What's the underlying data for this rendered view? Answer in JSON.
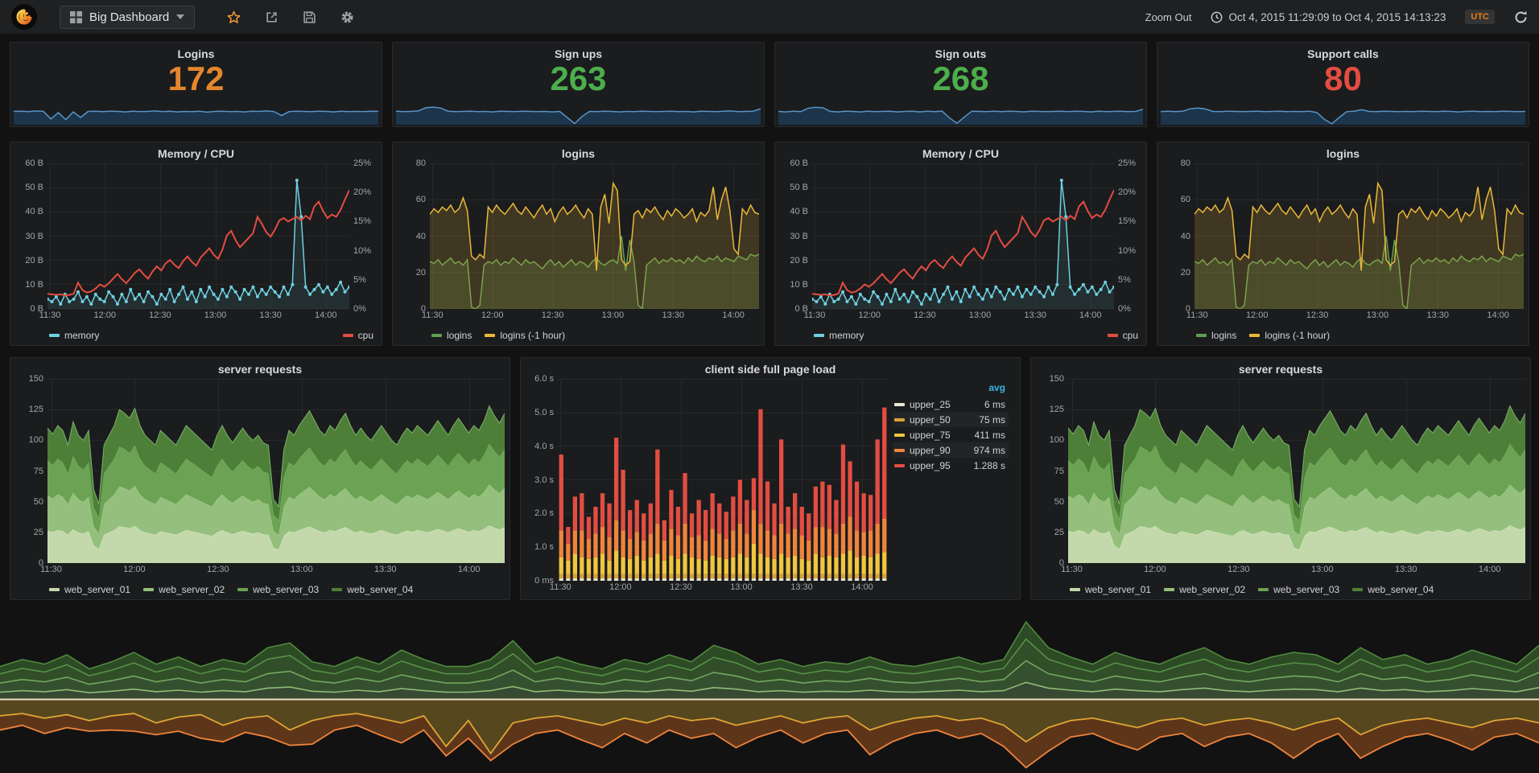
{
  "navbar": {
    "logo": "grafana-logo",
    "title": "Big Dashboard",
    "zoom_out": "Zoom Out",
    "time_range": "Oct 4, 2015 11:29:09 to Oct 4, 2015 14:13:23",
    "timezone": "UTC"
  },
  "time_axis": {
    "labels": [
      "11:30",
      "12:00",
      "12:30",
      "13:00",
      "13:30",
      "14:00"
    ],
    "fractions": [
      0.008,
      0.19,
      0.373,
      0.556,
      0.739,
      0.922
    ]
  },
  "stats": [
    {
      "title": "Logins",
      "value": "172",
      "color": "#e5862d",
      "spark": [
        55,
        56,
        54,
        57,
        55,
        24,
        50,
        21,
        53,
        30,
        55,
        56,
        54,
        56,
        55,
        53,
        56,
        54,
        55,
        57,
        54,
        56,
        53,
        55,
        54,
        56,
        52,
        55,
        56,
        54,
        55,
        53,
        56,
        55,
        57,
        54,
        38,
        54,
        56,
        55,
        54,
        56,
        55,
        53,
        56,
        54,
        55,
        54,
        56,
        55
      ]
    },
    {
      "title": "Sign ups",
      "value": "263",
      "color": "#4cae4c",
      "spark": [
        56,
        54,
        55,
        57,
        70,
        73,
        69,
        56,
        54,
        55,
        56,
        54,
        55,
        53,
        56,
        55,
        54,
        56,
        55,
        54,
        55,
        53,
        55,
        30,
        5,
        34,
        55,
        54,
        56,
        55,
        53,
        55,
        54,
        56,
        55,
        54,
        55,
        56,
        54,
        55,
        53,
        56,
        55,
        54,
        56,
        57,
        54,
        55,
        56,
        66
      ]
    },
    {
      "title": "Sign outs",
      "value": "268",
      "color": "#4cae4c",
      "spark": [
        55,
        53,
        56,
        54,
        68,
        72,
        70,
        55,
        53,
        56,
        55,
        53,
        56,
        54,
        55,
        56,
        53,
        55,
        56,
        53,
        56,
        54,
        56,
        28,
        6,
        32,
        56,
        55,
        54,
        56,
        54,
        56,
        55,
        53,
        56,
        55,
        54,
        55,
        56,
        54,
        56,
        55,
        53,
        56,
        54,
        55,
        56,
        54,
        55,
        64
      ]
    },
    {
      "title": "Support calls",
      "value": "80",
      "color": "#e24d42",
      "spark": [
        54,
        56,
        54,
        56,
        66,
        69,
        65,
        55,
        54,
        56,
        55,
        54,
        55,
        56,
        54,
        55,
        56,
        54,
        55,
        54,
        56,
        50,
        22,
        4,
        30,
        54,
        56,
        62,
        55,
        54,
        56,
        55,
        54,
        55,
        54,
        56,
        55,
        54,
        56,
        55,
        53,
        55,
        56,
        54,
        55,
        54,
        56,
        55,
        54,
        55
      ]
    }
  ],
  "charts": {
    "memory_cpu": {
      "type": "lines",
      "title": "Memory / CPU",
      "y_left": [
        "60 B",
        "50 B",
        "40 B",
        "30 B",
        "20 B",
        "10 B",
        "0 B"
      ],
      "y_right": [
        "25%",
        "20%",
        "15%",
        "10%",
        "5%",
        "0%"
      ],
      "legend": [
        {
          "label": "memory",
          "color": "#6ed0e0"
        },
        {
          "label": "cpu",
          "color": "#e24d42"
        }
      ],
      "series": [
        {
          "name": "memory",
          "color": "#6ed0e0",
          "max": 60,
          "width": 1.5,
          "dots": true,
          "fill": "rgba(110,208,224,0.10)",
          "data": [
            4,
            3,
            5,
            2,
            6,
            3,
            4,
            7,
            3,
            5,
            2,
            6,
            4,
            3,
            7,
            5,
            2,
            6,
            3,
            8,
            4,
            6,
            3,
            7,
            5,
            2,
            6,
            4,
            8,
            3,
            6,
            9,
            4,
            7,
            3,
            8,
            5,
            9,
            6,
            4,
            8,
            5,
            9,
            7,
            4,
            8,
            6,
            9,
            5,
            8,
            6,
            9,
            7,
            5,
            9,
            6,
            10,
            53,
            38,
            9,
            6,
            8,
            10,
            7,
            9,
            6,
            8,
            11,
            7,
            9
          ]
        },
        {
          "name": "cpu",
          "color": "#e24d42",
          "max": 25,
          "width": 2,
          "data": [
            2.6,
            2.5,
            2.4,
            2.5,
            2.3,
            2.4,
            2.6,
            4.5,
            3.2,
            2.8,
            3.0,
            3.5,
            4.2,
            3.8,
            4.4,
            5.2,
            6.0,
            5.1,
            4.4,
            5.3,
            6.2,
            6.8,
            5.9,
            5.2,
            6.4,
            7.3,
            6.6,
            7.8,
            8.4,
            7.6,
            7.0,
            8.2,
            9.0,
            8.1,
            7.4,
            8.8,
            9.6,
            10.4,
            9.3,
            8.6,
            10.2,
            12.6,
            13.4,
            11.8,
            10.6,
            11.4,
            12.2,
            13.0,
            15.8,
            14.6,
            13.2,
            12.4,
            13.6,
            15.2,
            15.6,
            15.0,
            15.4,
            15.8,
            15.2,
            16.0,
            15.4,
            17.6,
            18.4,
            16.8,
            15.6,
            16.2,
            15.8,
            17.0,
            18.8,
            20.4
          ]
        }
      ]
    },
    "logins": {
      "type": "lines",
      "title": "logins",
      "y_left": [
        "80",
        "60",
        "40",
        "20",
        "0"
      ],
      "legend": [
        {
          "label": "logins",
          "color": "#629e51"
        },
        {
          "label": "logins (-1 hour)",
          "color": "#eab839"
        }
      ],
      "series": [
        {
          "name": "logins",
          "color": "#629e51",
          "max": 80,
          "width": 1.5,
          "fill": "rgba(98,158,81,0.20)",
          "data": [
            26,
            25,
            27,
            24,
            26,
            28,
            25,
            26,
            24,
            27,
            1,
            0,
            2,
            24,
            26,
            25,
            27,
            24,
            26,
            25,
            28,
            26,
            24,
            27,
            25,
            26,
            24,
            22,
            25,
            27,
            24,
            26,
            23,
            25,
            27,
            24,
            26,
            25,
            23,
            26,
            28,
            25,
            24,
            26,
            27,
            25,
            40,
            21,
            38,
            26,
            2,
            0,
            24,
            26,
            28,
            25,
            27,
            26,
            28,
            26,
            27,
            25,
            28,
            26,
            29,
            27,
            26,
            28,
            27,
            29,
            26,
            28,
            27,
            26,
            29,
            28,
            27,
            30,
            29,
            30
          ]
        },
        {
          "name": "logins (-1 hour)",
          "color": "#eab839",
          "max": 80,
          "width": 1.5,
          "fill": "rgba(234,184,57,0.18)",
          "data": [
            52,
            55,
            53,
            56,
            54,
            57,
            53,
            55,
            61,
            54,
            29,
            27,
            30,
            28,
            56,
            53,
            57,
            54,
            52,
            55,
            58,
            54,
            52,
            56,
            53,
            50,
            54,
            57,
            52,
            55,
            48,
            53,
            56,
            52,
            54,
            57,
            53,
            50,
            55,
            52,
            21,
            56,
            63,
            47,
            69,
            65,
            27,
            24,
            26,
            52,
            54,
            50,
            55,
            53,
            56,
            52,
            49,
            54,
            51,
            55,
            53,
            50,
            52,
            55,
            48,
            53,
            51,
            54,
            67,
            49,
            60,
            67,
            54,
            33,
            30,
            55,
            52,
            57,
            53,
            52
          ]
        }
      ]
    },
    "server_requests": {
      "type": "stack_area",
      "title": "server requests",
      "y_left": [
        "150",
        "125",
        "100",
        "75",
        "50",
        "25",
        "0"
      ],
      "max": 150,
      "fracs": [
        0.24,
        0.26,
        0.26,
        0.24
      ],
      "bands": [
        {
          "color": "#c3d9ab",
          "stroke": "#d9e8c6"
        },
        {
          "color": "#94bf7c",
          "stroke": "#a9d190"
        },
        {
          "color": "#6ba253",
          "stroke": "#7eb86a"
        },
        {
          "color": "#4d7f38",
          "stroke": "#7eb26d"
        }
      ],
      "legend": [
        {
          "label": "web_server_01",
          "color": "#c3d9ab"
        },
        {
          "label": "web_server_02",
          "color": "#94bf7c"
        },
        {
          "label": "web_server_03",
          "color": "#6ba253"
        },
        {
          "label": "web_server_04",
          "color": "#4d7f38"
        }
      ],
      "total": [
        110,
        105,
        112,
        108,
        96,
        115,
        104,
        100,
        108,
        60,
        48,
        96,
        104,
        112,
        125,
        122,
        118,
        126,
        112,
        104,
        100,
        96,
        108,
        104,
        100,
        96,
        104,
        112,
        108,
        104,
        100,
        96,
        92,
        104,
        112,
        104,
        98,
        104,
        110,
        104,
        100,
        104,
        98,
        96,
        52,
        46,
        92,
        108,
        104,
        112,
        118,
        124,
        116,
        108,
        104,
        112,
        108,
        116,
        122,
        112,
        104,
        110,
        104,
        100,
        106,
        112,
        106,
        100,
        96,
        104,
        110,
        106,
        112,
        108,
        104,
        110,
        116,
        110,
        104,
        112,
        118,
        112,
        106,
        112,
        108,
        116,
        128,
        120,
        114,
        122
      ]
    },
    "page_load": {
      "type": "bars",
      "title": "client side full page load",
      "y_left": [
        "6.0 s",
        "5.0 s",
        "4.0 s",
        "3.0 s",
        "2.0 s",
        "1.0 s",
        "0 ms"
      ],
      "max": 6,
      "segments": [
        {
          "color": "#EAE6D3",
          "const": 0.07
        },
        {
          "color": "#D9A23A",
          "const": 0.13
        },
        {
          "color": "#EFC63E",
          "data": [
            0.5,
            0.4,
            0.6,
            0.5,
            0.45,
            0.5,
            0.6,
            0.4,
            0.7,
            0.5,
            0.45,
            0.55,
            0.4,
            0.5,
            0.6,
            0.4,
            0.55,
            0.45,
            0.6,
            0.5,
            0.45,
            0.4,
            0.55,
            0.5,
            0.45,
            0.5,
            0.6,
            0.5,
            0.9,
            0.6,
            0.5,
            0.45,
            0.6,
            0.5,
            0.55,
            0.45,
            0.4,
            0.6,
            0.5,
            0.55,
            0.5,
            0.6,
            0.7,
            0.5,
            0.55,
            0.5,
            0.6,
            0.65
          ]
        },
        {
          "color": "#EF843C",
          "data": [
            0.8,
            0.5,
            0.7,
            0.8,
            0.6,
            0.7,
            0.8,
            0.7,
            0.9,
            0.8,
            0.6,
            0.7,
            0.6,
            0.7,
            0.9,
            0.6,
            0.8,
            0.7,
            0.9,
            0.6,
            0.7,
            0.6,
            0.8,
            0.7,
            0.6,
            0.8,
            0.9,
            0.7,
            1.0,
            0.9,
            0.8,
            0.7,
            0.9,
            0.7,
            0.8,
            0.7,
            0.6,
            0.8,
            0.9,
            0.8,
            0.7,
            0.9,
            1.0,
            0.8,
            0.7,
            0.8,
            0.9,
            1.0
          ]
        },
        {
          "color": "#E24D42",
          "data": [
            2.25,
            0.5,
            1.0,
            1.1,
            0.65,
            0.8,
            1.0,
            1.0,
            2.45,
            1.8,
            0.85,
            0.95,
            0.8,
            0.9,
            2.2,
            0.6,
            1.15,
            0.85,
            1.5,
            0.7,
            1.05,
            0.9,
            1.05,
            0.9,
            0.8,
            1.0,
            1.3,
            1.0,
            0.95,
            3.4,
            1.45,
            0.95,
            2.5,
            0.8,
            1.05,
            0.85,
            0.8,
            1.2,
            1.35,
            1.3,
            1.0,
            2.35,
            1.65,
            1.45,
            1.15,
            1.05,
            2.5,
            3.3
          ]
        }
      ],
      "legend": {
        "header": "avg",
        "rows": [
          {
            "label": "upper_25",
            "value": "6 ms",
            "color": "#EAE6D3"
          },
          {
            "label": "upper_50",
            "value": "75 ms",
            "color": "#D9A23A"
          },
          {
            "label": "upper_75",
            "value": "411 ms",
            "color": "#EFC63E"
          },
          {
            "label": "upper_90",
            "value": "974 ms",
            "color": "#EF843C"
          },
          {
            "label": "upper_95",
            "value": "1.288 s",
            "color": "#E24D42"
          }
        ]
      }
    },
    "stream": {
      "type": "stream",
      "baseline": 0.545,
      "baseline_color": "#e7e0c4",
      "up_fracs": [
        0.22,
        0.28,
        0.28,
        0.22
      ],
      "up_bands": [
        {
          "stroke": "#9cc581",
          "fill": "rgba(126,178,109,0.35)"
        },
        {
          "stroke": "#7eb26d",
          "fill": "rgba(98,158,81,0.45)"
        },
        {
          "stroke": "#629e51",
          "fill": "rgba(80,138,62,0.50)"
        },
        {
          "stroke": "#508a3e",
          "fill": "rgba(62,111,47,0.60)"
        }
      ],
      "up_total": [
        28,
        34,
        30,
        38,
        26,
        32,
        40,
        30,
        36,
        28,
        34,
        30,
        44,
        48,
        32,
        28,
        36,
        30,
        42,
        34,
        28,
        28,
        34,
        50,
        30,
        36,
        30,
        26,
        34,
        30,
        38,
        32,
        46,
        40,
        30,
        34,
        28,
        32,
        30,
        36,
        30,
        28,
        32,
        36,
        30,
        34,
        66,
        44,
        36,
        30,
        40,
        34,
        30,
        38,
        44,
        34,
        30,
        36,
        40,
        38,
        30,
        44,
        34,
        38,
        30,
        34,
        42,
        36,
        30,
        46
      ],
      "down": [
        {
          "stroke": "#eab839",
          "fill": "rgba(234,184,57,0.32)",
          "data": [
            14,
            12,
            16,
            13,
            18,
            14,
            12,
            20,
            15,
            13,
            22,
            16,
            14,
            26,
            18,
            14,
            12,
            16,
            20,
            14,
            40,
            18,
            46,
            20,
            16,
            14,
            18,
            22,
            16,
            20,
            14,
            18,
            16,
            22,
            18,
            14,
            20,
            16,
            14,
            26,
            20,
            16,
            14,
            18,
            16,
            22,
            36,
            24,
            18,
            16,
            20,
            24,
            18,
            16,
            22,
            18,
            16,
            20,
            26,
            20,
            16,
            30,
            22,
            18,
            16,
            20,
            24,
            18,
            16,
            20
          ]
        },
        {
          "stroke": "#ef843c",
          "fill": "rgba(186,100,36,0.45)",
          "data": [
            12,
            10,
            13,
            11,
            9,
            12,
            15,
            10,
            12,
            20,
            14,
            12,
            18,
            13,
            20,
            12,
            10,
            14,
            17,
            12,
            8,
            15,
            6,
            18,
            13,
            12,
            16,
            19,
            13,
            17,
            12,
            15,
            13,
            19,
            14,
            12,
            17,
            13,
            12,
            21,
            16,
            13,
            12,
            15,
            13,
            18,
            22,
            20,
            14,
            13,
            17,
            19,
            14,
            13,
            18,
            14,
            13,
            17,
            24,
            17,
            13,
            20,
            18,
            14,
            13,
            15,
            19,
            14,
            13,
            17
          ]
        }
      ]
    }
  }
}
